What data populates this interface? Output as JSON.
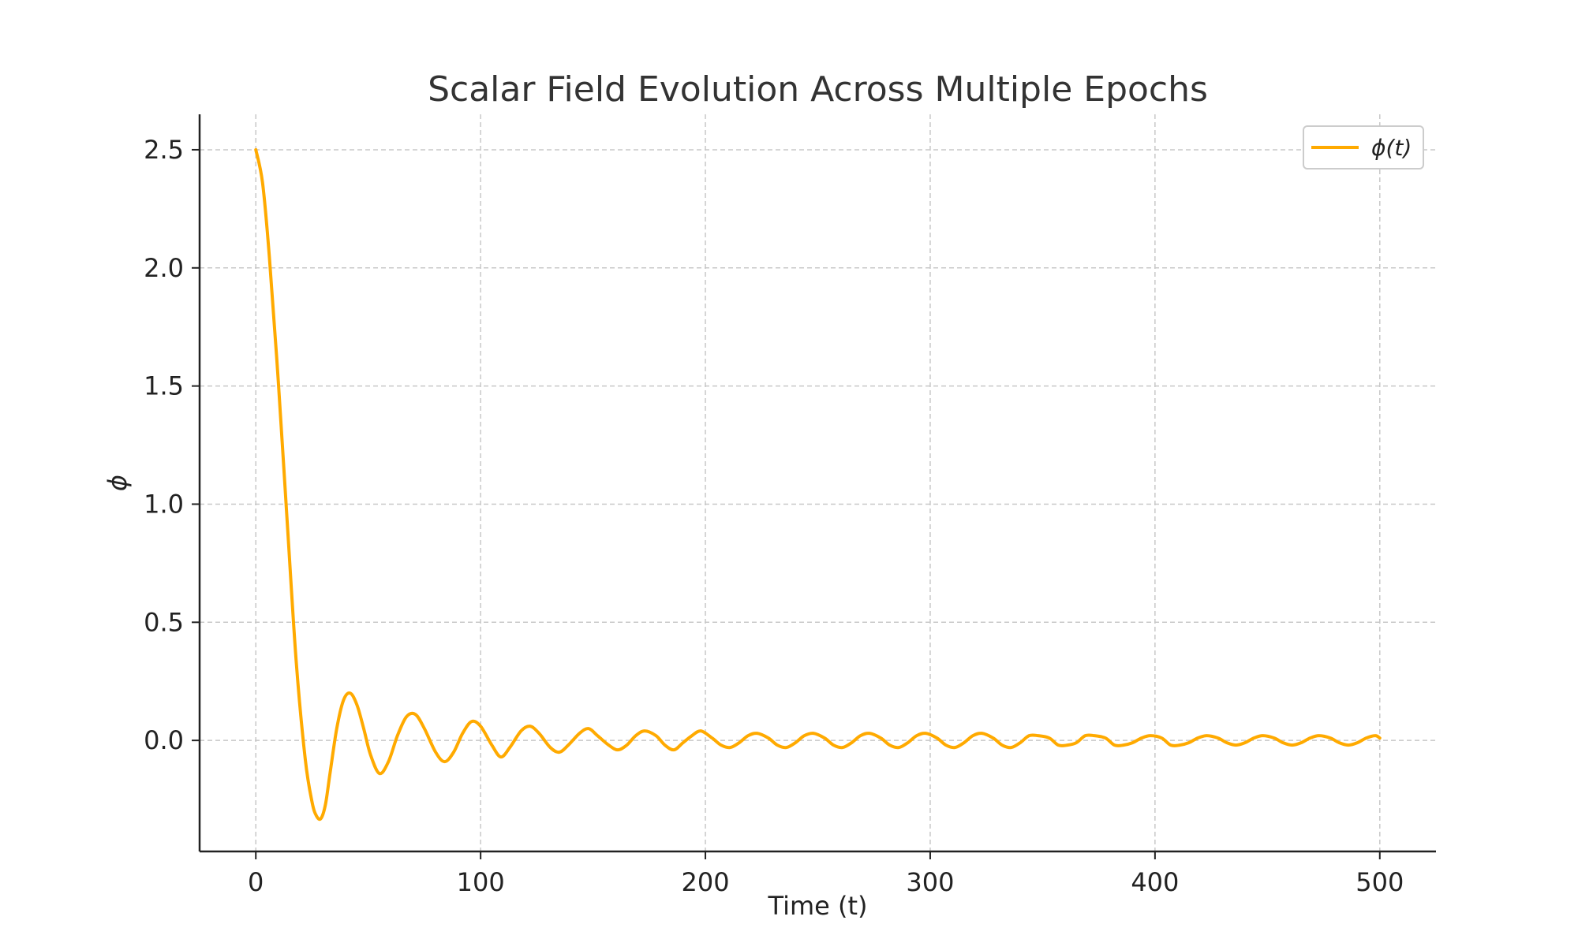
{
  "chart_data": {
    "type": "line",
    "title": "Scalar Field Evolution Across Multiple Epochs",
    "xlabel": "Time (t)",
    "ylabel": "ϕ",
    "xlim": [
      -25,
      525
    ],
    "ylim": [
      -0.47,
      2.65
    ],
    "xticks": [
      0,
      100,
      200,
      300,
      400,
      500
    ],
    "xtick_labels": [
      "0",
      "100",
      "200",
      "300",
      "400",
      "500"
    ],
    "yticks": [
      0.0,
      0.5,
      1.0,
      1.5,
      2.0,
      2.5
    ],
    "ytick_labels": [
      "0.0",
      "0.5",
      "1.0",
      "1.5",
      "2.0",
      "2.5"
    ],
    "grid": true,
    "legend_position": "top-right",
    "series": [
      {
        "name": "ϕ(t)",
        "color": "#FFAA00",
        "x": [
          0,
          3,
          6,
          10,
          14,
          18,
          22,
          25,
          27,
          29,
          31,
          33,
          36,
          39,
          42,
          45,
          48,
          51,
          55,
          59,
          63,
          67,
          71,
          75,
          80,
          84,
          88,
          92,
          96,
          100,
          105,
          109,
          113,
          118,
          122,
          126,
          131,
          135,
          139,
          144,
          148,
          152,
          157,
          161,
          165,
          169,
          173,
          178,
          182,
          186,
          190,
          194,
          198,
          203,
          207,
          211,
          215,
          219,
          223,
          228,
          232,
          236,
          240,
          244,
          248,
          253,
          257,
          261,
          265,
          269,
          273,
          278,
          282,
          286,
          290,
          294,
          298,
          303,
          307,
          311,
          315,
          319,
          323,
          328,
          332,
          336,
          340,
          344,
          348,
          353,
          357,
          361,
          365,
          369,
          373,
          378,
          382,
          386,
          390,
          394,
          398,
          403,
          407,
          411,
          415,
          419,
          423,
          428,
          432,
          436,
          440,
          444,
          448,
          453,
          457,
          461,
          465,
          469,
          473,
          478,
          482,
          486,
          490,
          494,
          498,
          500
        ],
        "y": [
          2.5,
          2.36,
          2.05,
          1.52,
          0.92,
          0.33,
          -0.08,
          -0.26,
          -0.32,
          -0.33,
          -0.27,
          -0.14,
          0.05,
          0.17,
          0.2,
          0.15,
          0.05,
          -0.06,
          -0.14,
          -0.09,
          0.02,
          0.1,
          0.11,
          0.05,
          -0.05,
          -0.09,
          -0.05,
          0.03,
          0.08,
          0.06,
          -0.02,
          -0.07,
          -0.03,
          0.04,
          0.06,
          0.03,
          -0.03,
          -0.05,
          -0.02,
          0.03,
          0.05,
          0.02,
          -0.02,
          -0.04,
          -0.02,
          0.02,
          0.04,
          0.02,
          -0.02,
          -0.04,
          -0.01,
          0.02,
          0.04,
          0.01,
          -0.02,
          -0.03,
          -0.01,
          0.02,
          0.03,
          0.01,
          -0.02,
          -0.03,
          -0.01,
          0.02,
          0.03,
          0.01,
          -0.02,
          -0.03,
          -0.01,
          0.02,
          0.03,
          0.01,
          -0.02,
          -0.03,
          -0.01,
          0.02,
          0.03,
          0.01,
          -0.02,
          -0.03,
          -0.01,
          0.02,
          0.03,
          0.01,
          -0.02,
          -0.03,
          -0.01,
          0.02,
          0.02,
          0.01,
          -0.02,
          -0.02,
          -0.01,
          0.02,
          0.02,
          0.01,
          -0.02,
          -0.02,
          -0.01,
          0.01,
          0.02,
          0.01,
          -0.02,
          -0.02,
          -0.01,
          0.01,
          0.02,
          0.01,
          -0.01,
          -0.02,
          -0.01,
          0.01,
          0.02,
          0.01,
          -0.01,
          -0.02,
          -0.01,
          0.01,
          0.02,
          0.01,
          -0.01,
          -0.02,
          -0.01,
          0.01,
          0.02,
          0.01
        ]
      }
    ]
  }
}
